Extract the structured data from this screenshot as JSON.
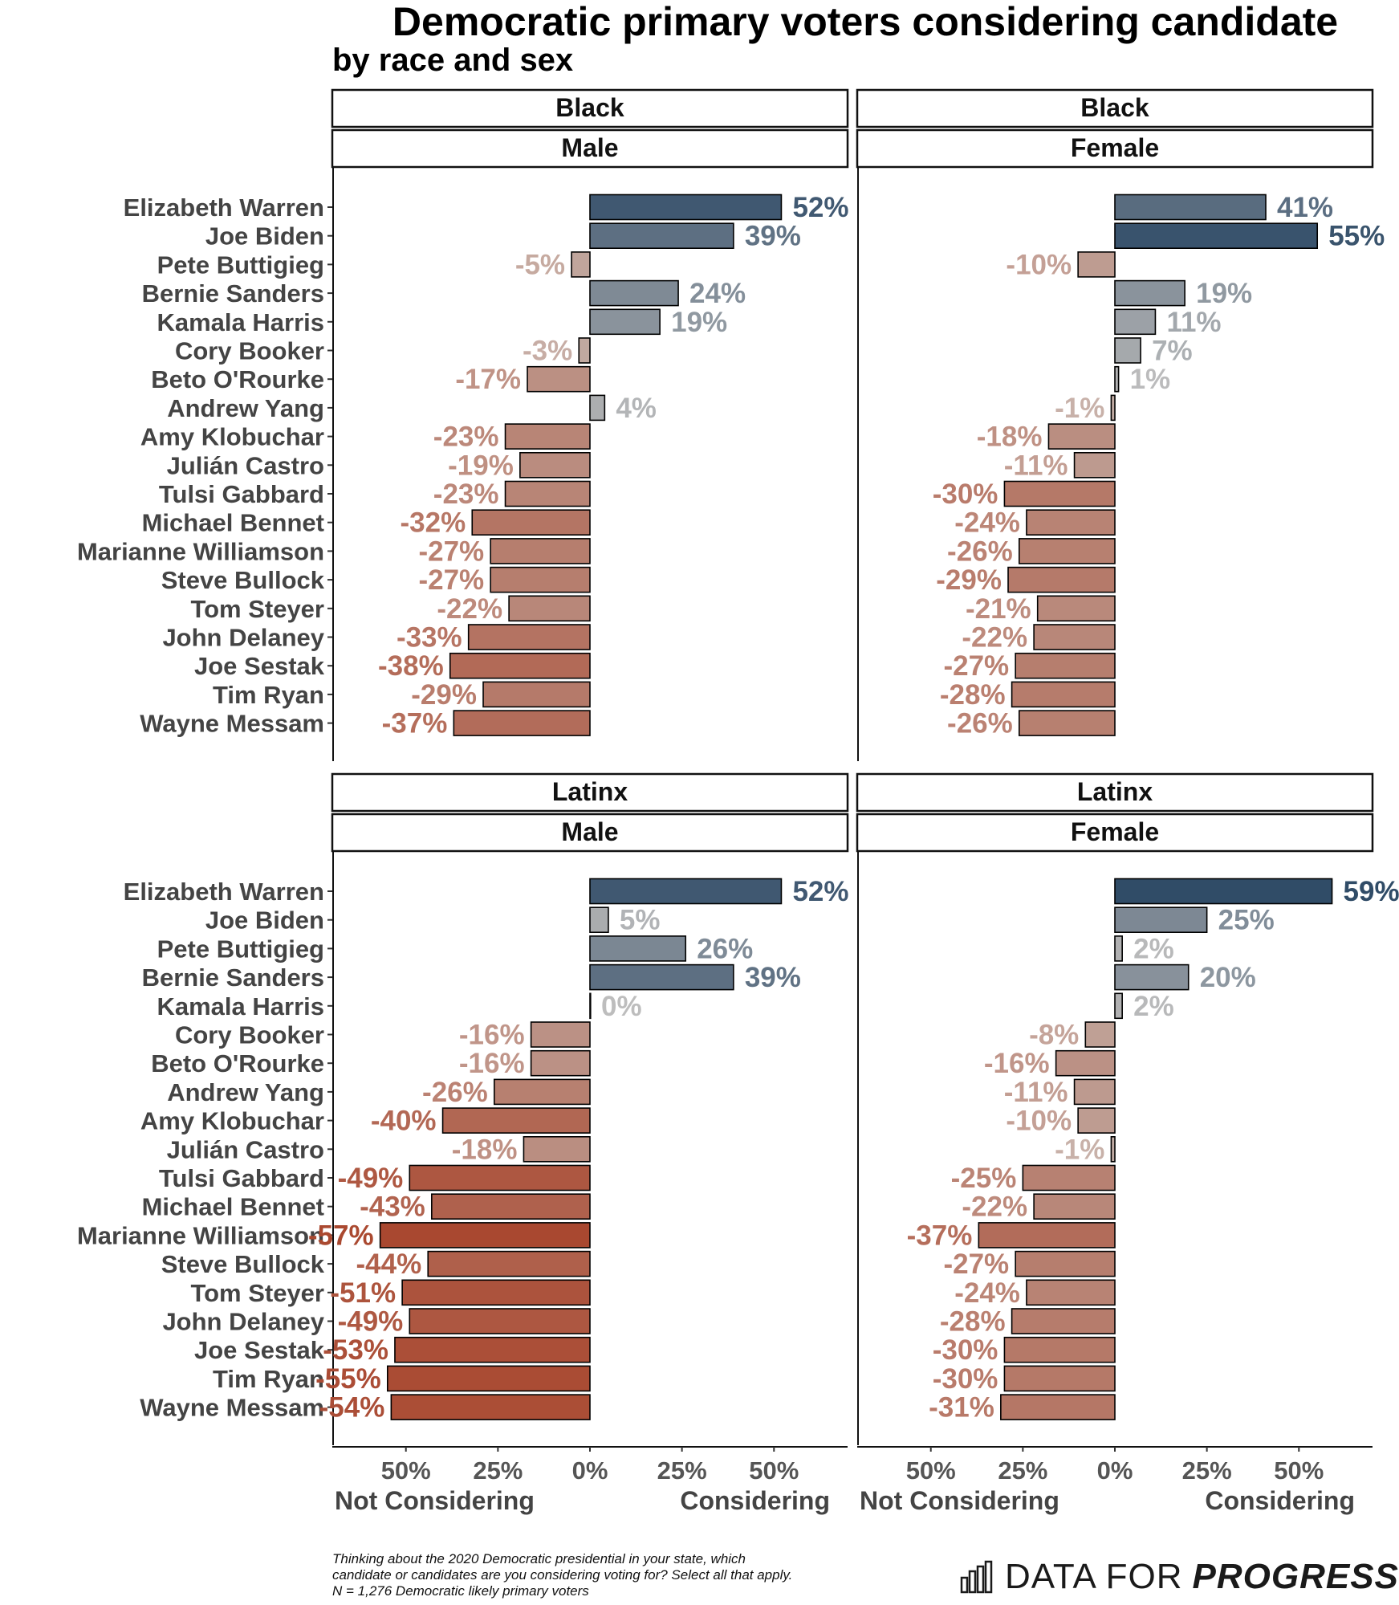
{
  "title": "Democratic primary voters considering candidate",
  "subtitle": "by race and sex",
  "footnote": [
    "Thinking about the 2020 Democratic presidential  in your state, which",
    "candidate or candidates are you considering voting for? Select all that apply.",
    "N = 1,276 Democratic likely primary voters"
  ],
  "brand": {
    "part1": "DATA FOR",
    "part2": "PROGRESS",
    "icon": "bar-chart-logo-icon"
  },
  "colors": {
    "positive_strong": "#2e4a66",
    "positive_weak": "#b5b5b5",
    "negative_weak": "#c2aea6",
    "negative_strong": "#a8432a",
    "bar_outline": "#000000"
  },
  "chart_data": {
    "type": "bar",
    "orientation": "horizontal",
    "categories": [
      "Elizabeth Warren",
      "Joe Biden",
      "Pete Buttigieg",
      "Bernie Sanders",
      "Kamala Harris",
      "Cory Booker",
      "Beto O'Rourke",
      "Andrew Yang",
      "Amy Klobuchar",
      "Julián Castro",
      "Tulsi Gabbard",
      "Michael Bennet",
      "Marianne Williamson",
      "Steve Bullock",
      "Tom Steyer",
      "John Delaney",
      "Joe Sestak",
      "Tim Ryan",
      "Wayne Messam"
    ],
    "xlim": [
      -70,
      70
    ],
    "x_ticks": [
      -50,
      -25,
      0,
      25,
      50
    ],
    "x_tick_labels": [
      "50%",
      "25%",
      "0%",
      "25%",
      "50%"
    ],
    "x_label_left": "Not Considering",
    "x_label_right": "Considering",
    "facets": [
      {
        "race": "Black",
        "sex": "Male",
        "values": [
          52,
          39,
          -5,
          24,
          19,
          -3,
          -17,
          4,
          -23,
          -19,
          -23,
          -32,
          -27,
          -27,
          -22,
          -33,
          -38,
          -29,
          -37
        ]
      },
      {
        "race": "Black",
        "sex": "Female",
        "values": [
          41,
          55,
          -10,
          19,
          11,
          7,
          1,
          -1,
          -18,
          -11,
          -30,
          -24,
          -26,
          -29,
          -21,
          -22,
          -27,
          -28,
          -26
        ]
      },
      {
        "race": "Latinx",
        "sex": "Male",
        "values": [
          52,
          5,
          26,
          39,
          0,
          -16,
          -16,
          -26,
          -40,
          -18,
          -49,
          -43,
          -57,
          -44,
          -51,
          -49,
          -53,
          -55,
          -54
        ]
      },
      {
        "race": "Latinx",
        "sex": "Female",
        "values": [
          59,
          25,
          2,
          20,
          2,
          -8,
          -16,
          -11,
          -10,
          -1,
          -25,
          -22,
          -37,
          -27,
          -24,
          -28,
          -30,
          -30,
          -31
        ]
      }
    ]
  }
}
